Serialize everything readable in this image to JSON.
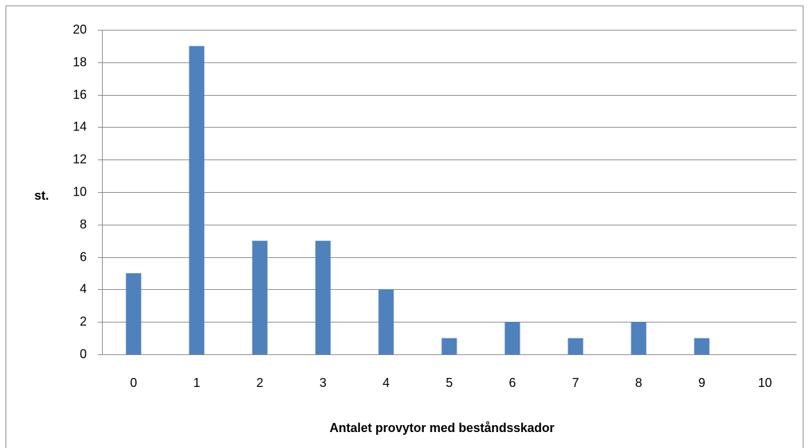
{
  "chart_data": {
    "type": "bar",
    "x_label": "Antalet provytor med beståndsskador",
    "y_label": "st.",
    "categories": [
      "0",
      "1",
      "2",
      "3",
      "4",
      "5",
      "6",
      "7",
      "8",
      "9",
      "10"
    ],
    "values": [
      5,
      19,
      7,
      7,
      4,
      1,
      2,
      1,
      2,
      1,
      0
    ],
    "color": "#4f81bd",
    "ylim": [
      0,
      20
    ],
    "yticks": [
      0,
      2,
      4,
      6,
      8,
      10,
      12,
      14,
      16,
      18,
      20
    ],
    "grid": true
  }
}
